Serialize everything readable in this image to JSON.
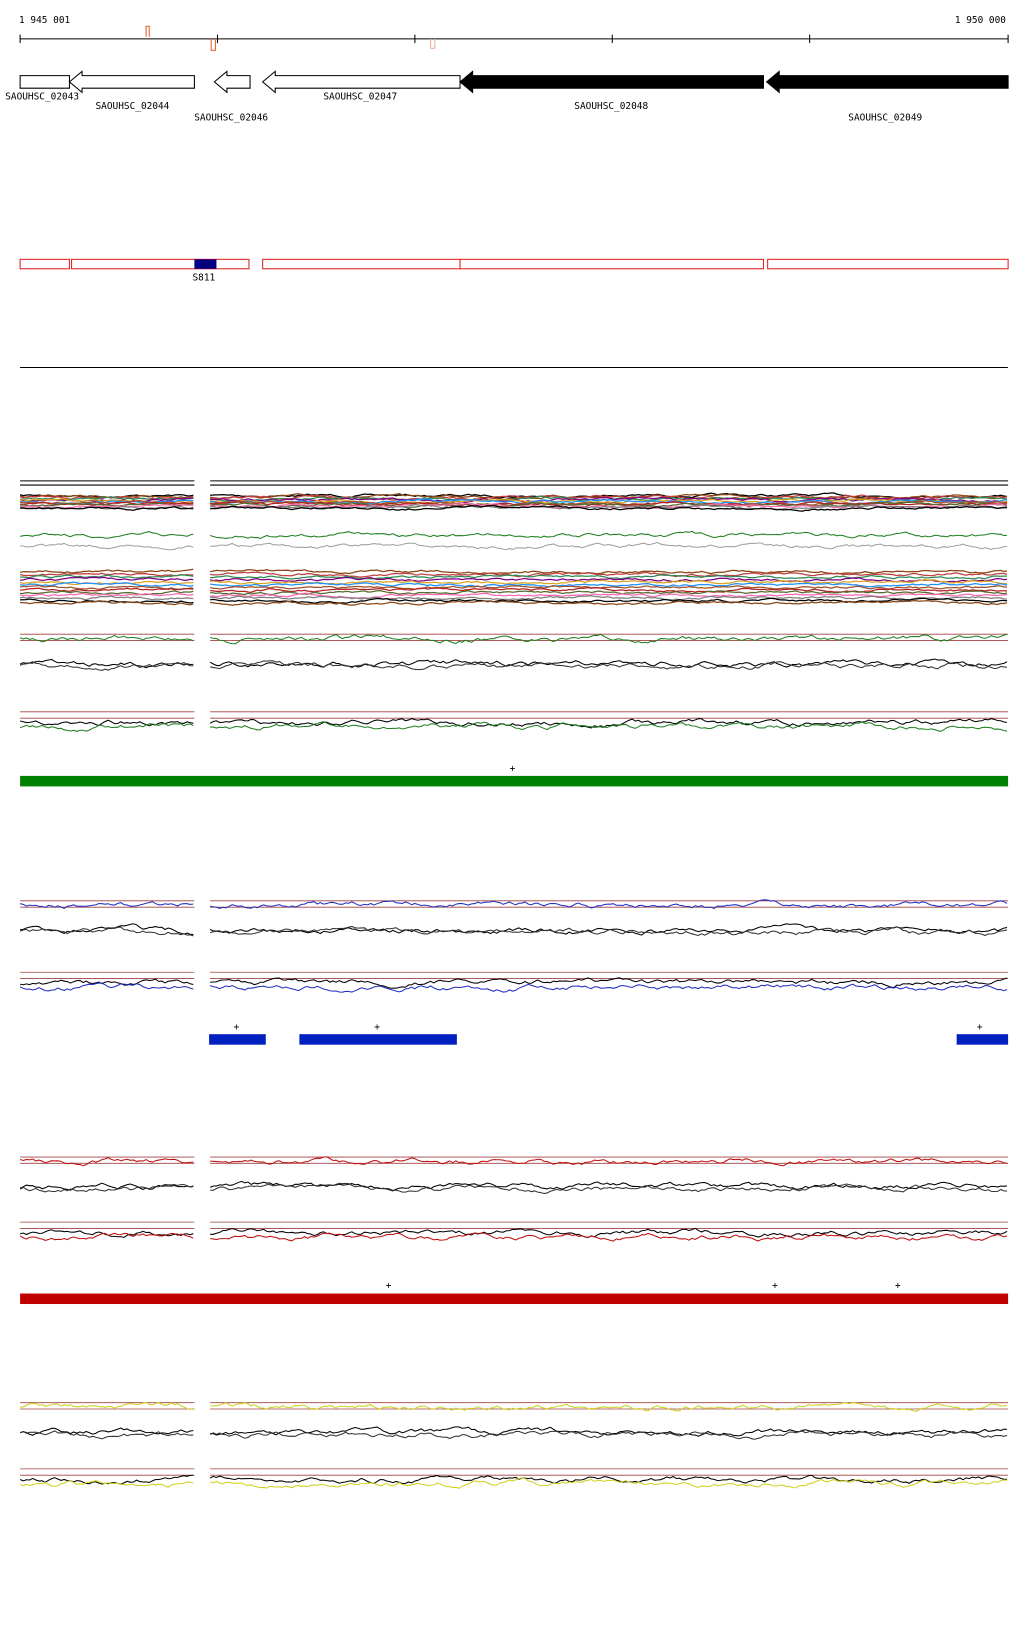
{
  "ruler": {
    "start": "1 945 001",
    "end": "1 950 000"
  },
  "genes": [
    "SAOUHSC_02043",
    "SAOUHSC_02044",
    "SAOUHSC_02046",
    "SAOUHSC_02047",
    "SAOUHSC_02048",
    "SAOUHSC_02049"
  ],
  "features": [
    "S811"
  ],
  "tracks": {
    "green": {
      "markers": [
        "+"
      ]
    },
    "blue": {
      "markers": [
        "+",
        "+",
        "+"
      ]
    },
    "red": {
      "markers": [
        "+",
        "+",
        "+"
      ]
    }
  }
}
